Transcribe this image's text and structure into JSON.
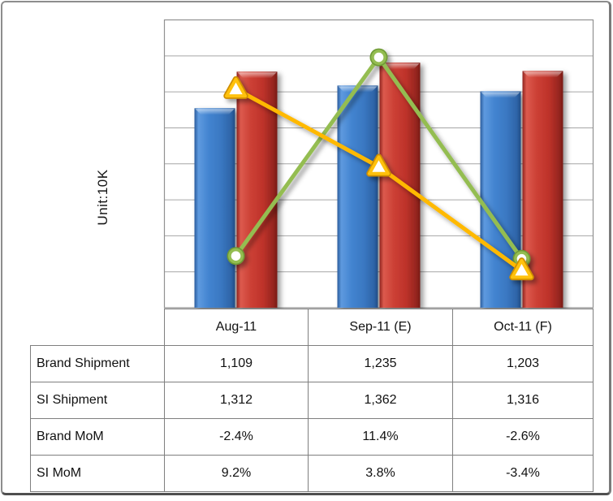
{
  "unit_label_note": "axis unit caption shown rotated at left of chart",
  "chart_data": {
    "type": "bar+line combo",
    "title": "",
    "unit_label": "Unit:10K",
    "categories": [
      "Aug-11",
      "Sep-11 (E)",
      "Oct-11 (F)"
    ],
    "bar_series": [
      {
        "name": "Brand Shipment",
        "color": "#3c7bc6",
        "values": [
          1109,
          1235,
          1203
        ]
      },
      {
        "name": "SI Shipment",
        "color": "#c23429",
        "values": [
          1312,
          1362,
          1316
        ]
      }
    ],
    "line_series": [
      {
        "name": "Brand MoM",
        "color": "#94bd51",
        "marker": "circle",
        "values_pct": [
          -2.4,
          11.4,
          -2.6
        ]
      },
      {
        "name": "SI MoM",
        "color": "#ffb900",
        "marker": "triangle",
        "values_pct": [
          9.2,
          3.8,
          -3.4
        ]
      }
    ],
    "primary_axis": {
      "min": 0,
      "max": 1600,
      "gridline_step": 200,
      "tick_labels_visible": false
    },
    "secondary_axis": {
      "min": -6,
      "max": 14,
      "tick_labels_visible": false
    },
    "grid": true,
    "legend": "none",
    "gridline_color": "#a6a6a6",
    "plot_border_color": "#919191"
  },
  "table": {
    "header": [
      "Aug-11",
      "Sep-11 (E)",
      "Oct-11 (F)"
    ],
    "rows": [
      {
        "label": "Brand Shipment",
        "values": [
          "1,109",
          "1,235",
          "1,203"
        ]
      },
      {
        "label": "SI Shipment",
        "values": [
          "1,312",
          "1,362",
          "1,316"
        ]
      },
      {
        "label": "Brand MoM",
        "values": [
          "-2.4%",
          "11.4%",
          "-2.6%"
        ]
      },
      {
        "label": "SI MoM",
        "values": [
          "9.2%",
          "3.8%",
          "-3.4%"
        ]
      }
    ],
    "border_color": "#7f7f7f",
    "text_color": "#111111"
  },
  "frame": {
    "background": "#ffffff",
    "border_color": "#8d8d8d"
  }
}
